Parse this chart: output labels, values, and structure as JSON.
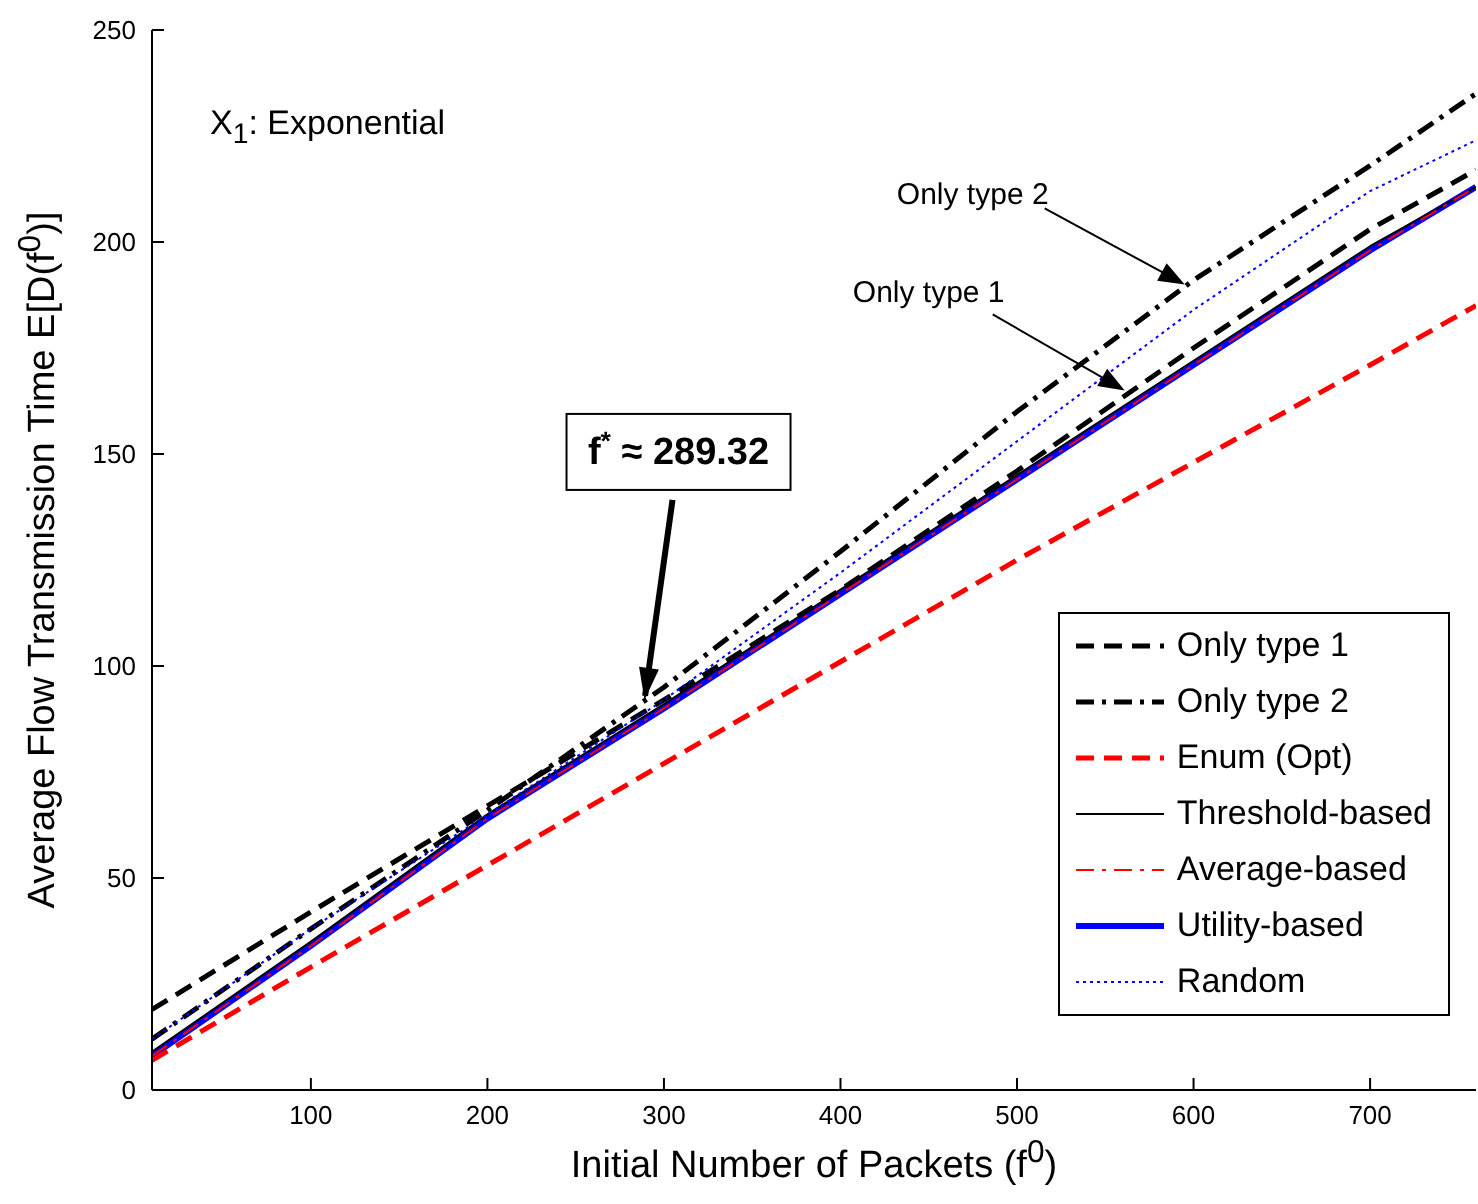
{
  "chart_data": {
    "type": "line",
    "xlabel": "Initial Number of Packets (f$^{0}$)",
    "ylabel": "Average Flow Transmission Time E[D(f$^{0}$)]",
    "x": [
      10,
      100,
      200,
      300,
      400,
      500,
      600,
      700,
      760
    ],
    "xlim": [
      10,
      760
    ],
    "xticks": [
      100,
      200,
      300,
      400,
      500,
      600,
      700
    ],
    "ylim": [
      0,
      250
    ],
    "yticks": [
      0,
      50,
      100,
      150,
      200,
      250
    ],
    "legend": "bottom right",
    "marker": "none",
    "series": [
      {
        "name": "Only type 1",
        "color": "#000000",
        "line_style": "dashed",
        "values": [
          19,
          42,
          67,
          92,
          118,
          146,
          175,
          203,
          217
        ]
      },
      {
        "name": "Only type 2",
        "color": "#000000",
        "line_style": "dashdot",
        "values": [
          12,
          38,
          66,
          95,
          127,
          160,
          191,
          218,
          235
        ]
      },
      {
        "name": "Enum (Opt)",
        "color": "#ff0000",
        "line_style": "dashed",
        "values": [
          7,
          29,
          53,
          77,
          101,
          125,
          148,
          171,
          185
        ]
      },
      {
        "name": "Threshold-based",
        "color": "#000000",
        "line_style": "solid",
        "values": [
          9,
          35,
          65,
          91,
          118,
          145,
          172,
          199,
          213
        ]
      },
      {
        "name": "Average-based",
        "color": "#ff0000",
        "line_style": "dashdot",
        "values": [
          8,
          34,
          64,
          90,
          117,
          144,
          171,
          198,
          213
        ]
      },
      {
        "name": "Utility-based",
        "color": "#0000ff",
        "line_style": "solid",
        "values": [
          8,
          34,
          64,
          90,
          117,
          144,
          171,
          198,
          213
        ]
      },
      {
        "name": "Random",
        "color": "#0000ff",
        "line_style": "dotted",
        "values": [
          12,
          38,
          65,
          92,
          122,
          153,
          184,
          212,
          224
        ]
      }
    ],
    "annotations": [
      "X$_{1}$:  Exponential",
      {
        "text": "f$^{*}$ ≈ 289.32",
        "x": 289,
        "y": 92
      },
      {
        "text": "Only type 2",
        "x": 595,
        "y": 190
      },
      {
        "text": "Only type 1",
        "x": 561,
        "y": 165
      }
    ]
  }
}
